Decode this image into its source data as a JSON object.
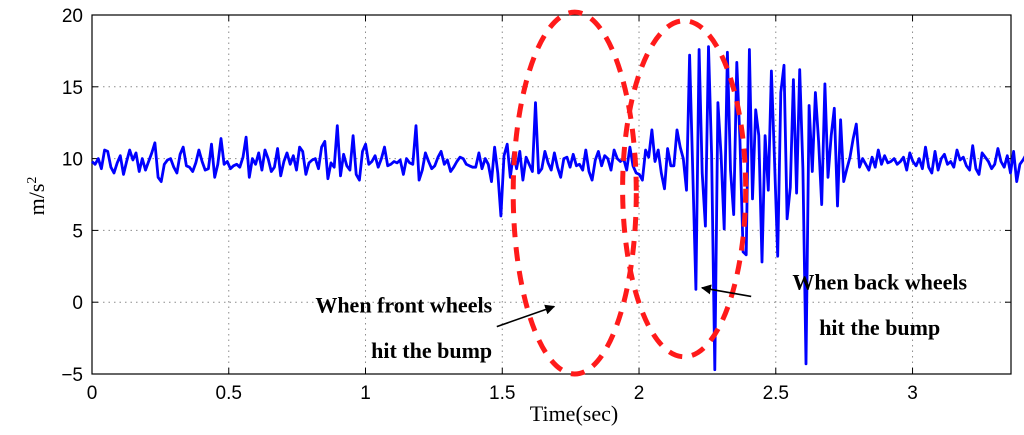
{
  "chart_data": {
    "type": "line",
    "title": "",
    "xlabel": "Time(sec)",
    "ylabel_base": "m/s",
    "ylabel_sup": "2",
    "xlim": [
      0,
      3.36
    ],
    "ylim": [
      -5,
      20
    ],
    "grid": true,
    "x_ticks": [
      0,
      0.5,
      1,
      1.5,
      2,
      2.5,
      3
    ],
    "y_ticks": [
      -5,
      0,
      5,
      10,
      15,
      20
    ],
    "x_tick_labels": [
      "0",
      "0.5",
      "1",
      "1.5",
      "2",
      "2.5",
      "3"
    ],
    "y_tick_labels": [
      "−5",
      "0",
      "5",
      "10",
      "15",
      "20"
    ],
    "line_color": "#0000ff",
    "ellipse_color": "#ff1a1a",
    "sample_dt": 0.0115,
    "series": [
      {
        "values": [
          9.8,
          9.6,
          10.0,
          9.3,
          10.6,
          10.5,
          9.4,
          9.0,
          9.7,
          10.2,
          8.9,
          9.8,
          10.6,
          9.9,
          10.4,
          9.1,
          10.0,
          9.2,
          9.8,
          10.4,
          11.1,
          8.7,
          8.4,
          9.6,
          9.9,
          10.0,
          9.4,
          9.0,
          10.3,
          10.8,
          9.5,
          9.4,
          9.1,
          9.7,
          10.6,
          9.8,
          9.2,
          9.3,
          11.0,
          8.7,
          9.6,
          11.4,
          9.6,
          9.8,
          9.3,
          9.5,
          9.6,
          9.4,
          10.1,
          11.5,
          8.7,
          10.0,
          9.6,
          10.4,
          9.2,
          10.6,
          10.0,
          9.1,
          9.4,
          10.7,
          8.8,
          9.8,
          10.4,
          9.6,
          10.2,
          9.2,
          10.8,
          10.5,
          8.9,
          9.7,
          9.9,
          10.0,
          9.3,
          10.8,
          11.2,
          8.6,
          9.7,
          9.4,
          12.3,
          8.8,
          10.3,
          9.5,
          9.2,
          11.6,
          8.9,
          8.5,
          10.5,
          11.0,
          9.6,
          9.8,
          10.2,
          9.4,
          10.0,
          10.8,
          9.5,
          9.6,
          9.8,
          9.7,
          9.9,
          8.9,
          10.0,
          9.7,
          9.6,
          12.3,
          8.5,
          9.2,
          10.4,
          9.8,
          9.3,
          9.5,
          10.1,
          10.5,
          9.6,
          9.9,
          9.1,
          9.4,
          9.8,
          10.1,
          10.0,
          9.6,
          9.5,
          9.4,
          9.4,
          10.4,
          9.3,
          10.0,
          9.6,
          8.4,
          10.8,
          9.0,
          6.0,
          10.2,
          11.0,
          8.7,
          10.4,
          9.3,
          10.5,
          8.5,
          10.1,
          9.6,
          9.1,
          13.9,
          9.0,
          9.3,
          10.5,
          9.7,
          9.2,
          10.4,
          9.4,
          8.7,
          10.0,
          10.1,
          9.4,
          10.3,
          9.5,
          9.6,
          9.2,
          10.6,
          9.1,
          8.5,
          9.9,
          10.5,
          9.5,
          10.2,
          10.0,
          9.2,
          10.6,
          10.0,
          9.8,
          10.0,
          9.2,
          10.8,
          9.5,
          9.0,
          8.9,
          8.5,
          10.6,
          10.1,
          12.0,
          9.8,
          10.6,
          9.0,
          7.9,
          10.7,
          9.5,
          9.5,
          12.0,
          10.8,
          10.0,
          7.8,
          17.2,
          9.0,
          0.9,
          17.6,
          9.0,
          5.3,
          17.8,
          10.3,
          -4.7,
          13.9,
          10.2,
          5.1,
          17.4,
          9.2,
          6.1,
          16.7,
          11.4,
          3.5,
          3.3,
          17.6,
          7.2,
          13.4,
          11.6,
          2.8,
          11.6,
          7.8,
          16.1,
          9.9,
          3.2,
          14.6,
          16.5,
          5.8,
          8.0,
          15.5,
          7.6,
          16.2,
          9.3,
          -4.3,
          13.7,
          9.1,
          14.6,
          11.2,
          6.8,
          15.2,
          8.7,
          11.6,
          13.5,
          6.7,
          12.7,
          8.4,
          9.3,
          10.1,
          11.4,
          12.4,
          9.4,
          10.0,
          9.6,
          9.2,
          10.1,
          9.4,
          10.6,
          9.6,
          10.2,
          9.7,
          9.8,
          10.0,
          9.6,
          9.8,
          10.1,
          9.2,
          10.4,
          9.8,
          9.5,
          10.0,
          9.3,
          10.8,
          9.4,
          9.0,
          10.5,
          9.2,
          10.0,
          10.3,
          9.6,
          9.8,
          9.4,
          10.6,
          9.9,
          10.1,
          9.5,
          9.2,
          10.9,
          9.3,
          8.9,
          10.4,
          10.1,
          9.8,
          9.3,
          9.6,
          10.7,
          9.8,
          9.4,
          10.2,
          9.0,
          10.5,
          8.4,
          9.6,
          9.9,
          10.3,
          9.5,
          9.8,
          10.6,
          9.5,
          10.0,
          9.2,
          9.4,
          10.2,
          9.7,
          9.8,
          9.4,
          10.0,
          9.6,
          9.9,
          10.5,
          9.1,
          10.2,
          9.8,
          9.4,
          11.1,
          9.6,
          9.8,
          9.3,
          10.4,
          9.7,
          8.6,
          11.4,
          9.4,
          9.7,
          10.1,
          10.4,
          9.5,
          10.0,
          9.6,
          10.8,
          9.2,
          10.1,
          9.0,
          10.5
        ]
      }
    ],
    "ellipses": [
      {
        "cx": 1.765,
        "cy": 7.6,
        "rx": 0.225,
        "ry": 12.6
      },
      {
        "cx": 2.165,
        "cy": 7.9,
        "rx": 0.225,
        "ry": 11.7
      }
    ],
    "annotations": [
      {
        "lines": [
          "When front wheels",
          "hit the bump"
        ],
        "align": "end",
        "text_x": 1.463,
        "text_y": -0.7,
        "line_gap": 3.2,
        "arrow_from": [
          1.48,
          -1.7
        ],
        "arrow_to": [
          1.69,
          -0.3
        ]
      },
      {
        "lines": [
          "When back wheels",
          "hit the bump"
        ],
        "align": "middle",
        "text_x": 2.88,
        "text_y": 0.9,
        "line_gap": 3.2,
        "arrow_from": [
          2.41,
          0.4
        ],
        "arrow_to": [
          2.23,
          1.0
        ]
      }
    ]
  }
}
